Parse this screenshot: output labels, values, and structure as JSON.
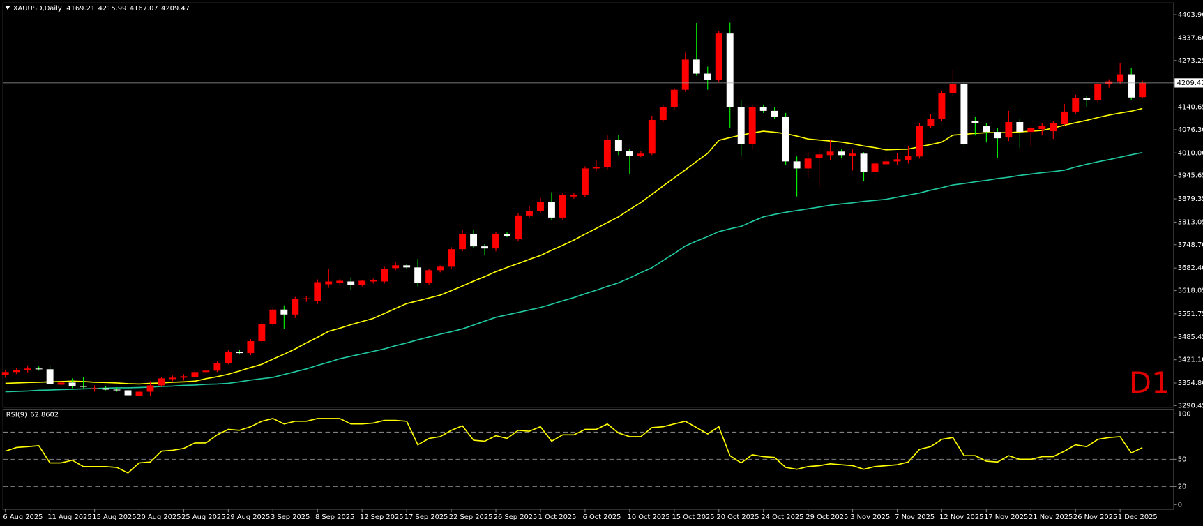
{
  "chart_data": [
    {
      "type": "candlestick",
      "title": "XAUUSD,Daily",
      "annotation": "D1",
      "categories": [
        "6 Aug 2025",
        null,
        null,
        null,
        "11 Aug 2025",
        null,
        null,
        null,
        "15 Aug 2025",
        null,
        null,
        null,
        "20 Aug 2025",
        null,
        null,
        null,
        "25 Aug 2025",
        null,
        null,
        null,
        "29 Aug 2025",
        null,
        null,
        null,
        "3 Sep 2025",
        null,
        null,
        null,
        "8 Sep 2025",
        null,
        null,
        null,
        "12 Sep 2025",
        null,
        null,
        null,
        "17 Sep 2025",
        null,
        null,
        null,
        "22 Sep 2025",
        null,
        null,
        null,
        "26 Sep 2025",
        null,
        null,
        null,
        "1 Oct 2025",
        null,
        null,
        null,
        "6 Oct 2025",
        null,
        null,
        null,
        "10 Oct 2025",
        null,
        null,
        null,
        "15 Oct 2025",
        null,
        null,
        null,
        "20 Oct 2025",
        null,
        null,
        null,
        "24 Oct 2025",
        null,
        null,
        null,
        "29 Oct 2025",
        null,
        null,
        null,
        "3 Nov 2025",
        null,
        null,
        null,
        "7 Nov 2025",
        null,
        null,
        null,
        "12 Nov 2025",
        null,
        null,
        null,
        "17 Nov 2025",
        null,
        null,
        null,
        "21 Nov 2025",
        null,
        null,
        null,
        "26 Nov 2025",
        null,
        null,
        null,
        "1 Dec 2025",
        null,
        null
      ],
      "open": [
        3378,
        3386,
        3392,
        3396,
        3394,
        3350,
        3356,
        3346,
        3338,
        3340,
        3336,
        3334,
        3318,
        3330,
        3348,
        3366,
        3370,
        3372,
        3386,
        3390,
        3412,
        3444,
        3440,
        3474,
        3522,
        3564,
        3550,
        3594,
        3588,
        3636,
        3640,
        3644,
        3634,
        3644,
        3644,
        3682,
        3690,
        3684,
        3640,
        3676,
        3686,
        3736,
        3780,
        3744,
        3738,
        3780,
        3764,
        3832,
        3844,
        3870,
        3826,
        3886,
        3890,
        3966,
        3970,
        4048,
        4016,
        4002,
        4008,
        4104,
        4140,
        4190,
        4276,
        4236,
        4218,
        4350,
        4140,
        4036,
        4140,
        4130,
        4114,
        3986,
        3966,
        3996,
        4004,
        4014,
        4002,
        4008,
        3956,
        3978,
        3986,
        3990,
        4000,
        4086,
        4108,
        4180,
        4206,
        4100,
        4086,
        4070,
        4054,
        4098,
        4070,
        4078,
        4072,
        4092,
        4128,
        4166,
        4160,
        4206,
        4214,
        4234,
        4169.21
      ],
      "high": [
        3392,
        3398,
        3405,
        3402,
        3403,
        3362,
        3368,
        3372,
        3348,
        3346,
        3342,
        3340,
        3336,
        3360,
        3372,
        3376,
        3380,
        3390,
        3396,
        3416,
        3450,
        3450,
        3480,
        3530,
        3570,
        3576,
        3600,
        3602,
        3650,
        3680,
        3652,
        3656,
        3648,
        3652,
        3686,
        3700,
        3694,
        3708,
        3680,
        3690,
        3742,
        3792,
        3790,
        3750,
        3786,
        3786,
        3838,
        3860,
        3882,
        3898,
        3896,
        3896,
        3972,
        3990,
        4060,
        4060,
        4022,
        4016,
        4116,
        4148,
        4196,
        4296,
        4380,
        4256,
        4358,
        4381,
        4160,
        4148,
        4148,
        4140,
        4124,
        4000,
        4012,
        4024,
        4046,
        4020,
        4020,
        4012,
        3986,
        4004,
        4010,
        4030,
        4096,
        4120,
        4188,
        4245,
        4214,
        4114,
        4096,
        4082,
        4130,
        4108,
        4086,
        4096,
        4102,
        4150,
        4176,
        4174,
        4210,
        4220,
        4266,
        4252,
        4215.99
      ],
      "low": [
        3370,
        3380,
        3385,
        3390,
        3350,
        3344,
        3340,
        3340,
        3330,
        3334,
        3330,
        3316,
        3310,
        3318,
        3344,
        3360,
        3362,
        3368,
        3380,
        3386,
        3408,
        3436,
        3434,
        3468,
        3516,
        3510,
        3540,
        3586,
        3580,
        3626,
        3632,
        3620,
        3630,
        3638,
        3638,
        3676,
        3680,
        3630,
        3634,
        3670,
        3680,
        3730,
        3740,
        3720,
        3730,
        3770,
        3758,
        3826,
        3838,
        3820,
        3820,
        3880,
        3884,
        3958,
        3964,
        4004,
        3950,
        3998,
        4004,
        4098,
        4132,
        4184,
        4230,
        4190,
        4212,
        4080,
        4000,
        4020,
        4124,
        4106,
        3976,
        3886,
        3940,
        3910,
        3990,
        3996,
        3960,
        3930,
        3936,
        3970,
        3976,
        3980,
        3994,
        4080,
        4100,
        4172,
        4030,
        4060,
        4040,
        3996,
        4044,
        4024,
        4030,
        4060,
        4050,
        4086,
        4120,
        4140,
        4154,
        4196,
        4206,
        4160,
        4167.07
      ],
      "close": [
        3386,
        3392,
        3396,
        3394,
        3352,
        3356,
        3346,
        3344,
        3340,
        3336,
        3334,
        3320,
        3330,
        3348,
        3368,
        3370,
        3374,
        3386,
        3390,
        3412,
        3444,
        3440,
        3474,
        3522,
        3564,
        3550,
        3594,
        3596,
        3642,
        3644,
        3646,
        3634,
        3646,
        3648,
        3680,
        3690,
        3684,
        3640,
        3676,
        3686,
        3736,
        3780,
        3744,
        3738,
        3780,
        3774,
        3832,
        3844,
        3870,
        3826,
        3890,
        3890,
        3966,
        3970,
        4048,
        4016,
        4002,
        4008,
        4104,
        4140,
        4190,
        4276,
        4236,
        4218,
        4350,
        4140,
        4036,
        4140,
        4130,
        4114,
        3986,
        3966,
        3994,
        4006,
        4014,
        4004,
        4008,
        3956,
        3980,
        3986,
        3992,
        4002,
        4086,
        4108,
        4180,
        4206,
        4036,
        4096,
        4070,
        4052,
        4098,
        4070,
        4082,
        4088,
        4094,
        4128,
        4166,
        4160,
        4206,
        4214,
        4234,
        4168,
        4209.47
      ],
      "up_color": "#ff0000",
      "down_color": "#ffffff",
      "down_wick_color": "#00ff00",
      "overlays": [
        {
          "color": "#ffff00",
          "values": [
            3354,
            3355,
            3356,
            3357,
            3358,
            3359,
            3360,
            3359,
            3357,
            3356,
            3355,
            3353,
            3352,
            3354,
            3355,
            3357,
            3358,
            3360,
            3367,
            3373,
            3380,
            3389,
            3399,
            3408,
            3423,
            3437,
            3452,
            3469,
            3485,
            3502,
            3511,
            3521,
            3530,
            3539,
            3553,
            3567,
            3581,
            3589,
            3597,
            3605,
            3618,
            3631,
            3645,
            3658,
            3672,
            3684,
            3695,
            3707,
            3718,
            3733,
            3747,
            3762,
            3779,
            3795,
            3812,
            3828,
            3849,
            3869,
            3892,
            3916,
            3939,
            3962,
            3986,
            4009,
            4046,
            4054,
            4061,
            4067,
            4072,
            4069,
            4065,
            4058,
            4050,
            4047,
            4044,
            4041,
            4036,
            4030,
            4025,
            4019,
            4020,
            4021,
            4028,
            4034,
            4041,
            4061,
            4063,
            4066,
            4068,
            4068,
            4068,
            4070,
            4072,
            4074,
            4081,
            4089,
            4096,
            4103,
            4111,
            4118,
            4124,
            4129,
            4137
          ]
        },
        {
          "color": "#20c8a0",
          "values": [
            3330,
            3331,
            3332,
            3334,
            3335,
            3336,
            3337,
            3338,
            3339,
            3340,
            3341,
            3341,
            3342,
            3343,
            3345,
            3346,
            3348,
            3349,
            3351,
            3352,
            3354,
            3358,
            3363,
            3367,
            3371,
            3379,
            3387,
            3395,
            3405,
            3414,
            3424,
            3431,
            3438,
            3445,
            3452,
            3461,
            3469,
            3478,
            3486,
            3494,
            3501,
            3509,
            3520,
            3531,
            3542,
            3549,
            3556,
            3563,
            3570,
            3579,
            3589,
            3598,
            3609,
            3619,
            3630,
            3640,
            3654,
            3669,
            3683,
            3704,
            3724,
            3745,
            3759,
            3772,
            3786,
            3794,
            3801,
            3815,
            3828,
            3835,
            3841,
            3846,
            3851,
            3856,
            3861,
            3865,
            3868,
            3872,
            3875,
            3878,
            3884,
            3890,
            3896,
            3904,
            3911,
            3919,
            3923,
            3928,
            3932,
            3937,
            3941,
            3946,
            3950,
            3954,
            3957,
            3961,
            3970,
            3978,
            3985,
            3991,
            3998,
            4005,
            4011
          ]
        }
      ],
      "ylim": [
        3286,
        4437
      ],
      "yticks": [
        {
          "value": 4403.9,
          "label": "4403.90"
        },
        {
          "value": 4337.6,
          "label": "4337.60"
        },
        4273.25,
        4140.65,
        {
          "value": 4076.3,
          "label": "4076.30"
        },
        {
          "value": 4010,
          "label": "4010.00"
        },
        3945.65,
        3879.35,
        3813.05,
        {
          "value": 3748.7,
          "label": "3748.70"
        },
        {
          "value": 3682.4,
          "label": "3682.40"
        },
        3618.05,
        3551.75,
        3485.45,
        {
          "value": 3421.1,
          "label": "3421.10"
        },
        {
          "value": 3354.8,
          "label": "3354.80"
        },
        3290.45
      ],
      "grid": false
    },
    {
      "type": "line",
      "title": "RSI(9)",
      "color": "#ffff00",
      "values": [
        59,
        63,
        64,
        65,
        46,
        46,
        49,
        42,
        42,
        42,
        41,
        35,
        46,
        47,
        59,
        60,
        62,
        68,
        68,
        77,
        83,
        82,
        86,
        92,
        95,
        89,
        92,
        92,
        95,
        95,
        95,
        89,
        89,
        90,
        93,
        93,
        92,
        66,
        73,
        75,
        82,
        87,
        71,
        70,
        76,
        73,
        82,
        81,
        86,
        70,
        77,
        77,
        83,
        83,
        89,
        79,
        75,
        75,
        85,
        86,
        89,
        92,
        85,
        78,
        86,
        54,
        46,
        55,
        53,
        52,
        41,
        39,
        42,
        43,
        45,
        44,
        43,
        39,
        42,
        43,
        44,
        47,
        61,
        64,
        72,
        74,
        54,
        54,
        48,
        47,
        54,
        50,
        50,
        53,
        53,
        59,
        66,
        64,
        72,
        74,
        75,
        57,
        62.8602
      ],
      "ylim": [
        -5,
        105
      ],
      "yticks": [
        100,
        50,
        20,
        0
      ],
      "levels": [
        80,
        50,
        20
      ],
      "grid": false
    }
  ]
}
